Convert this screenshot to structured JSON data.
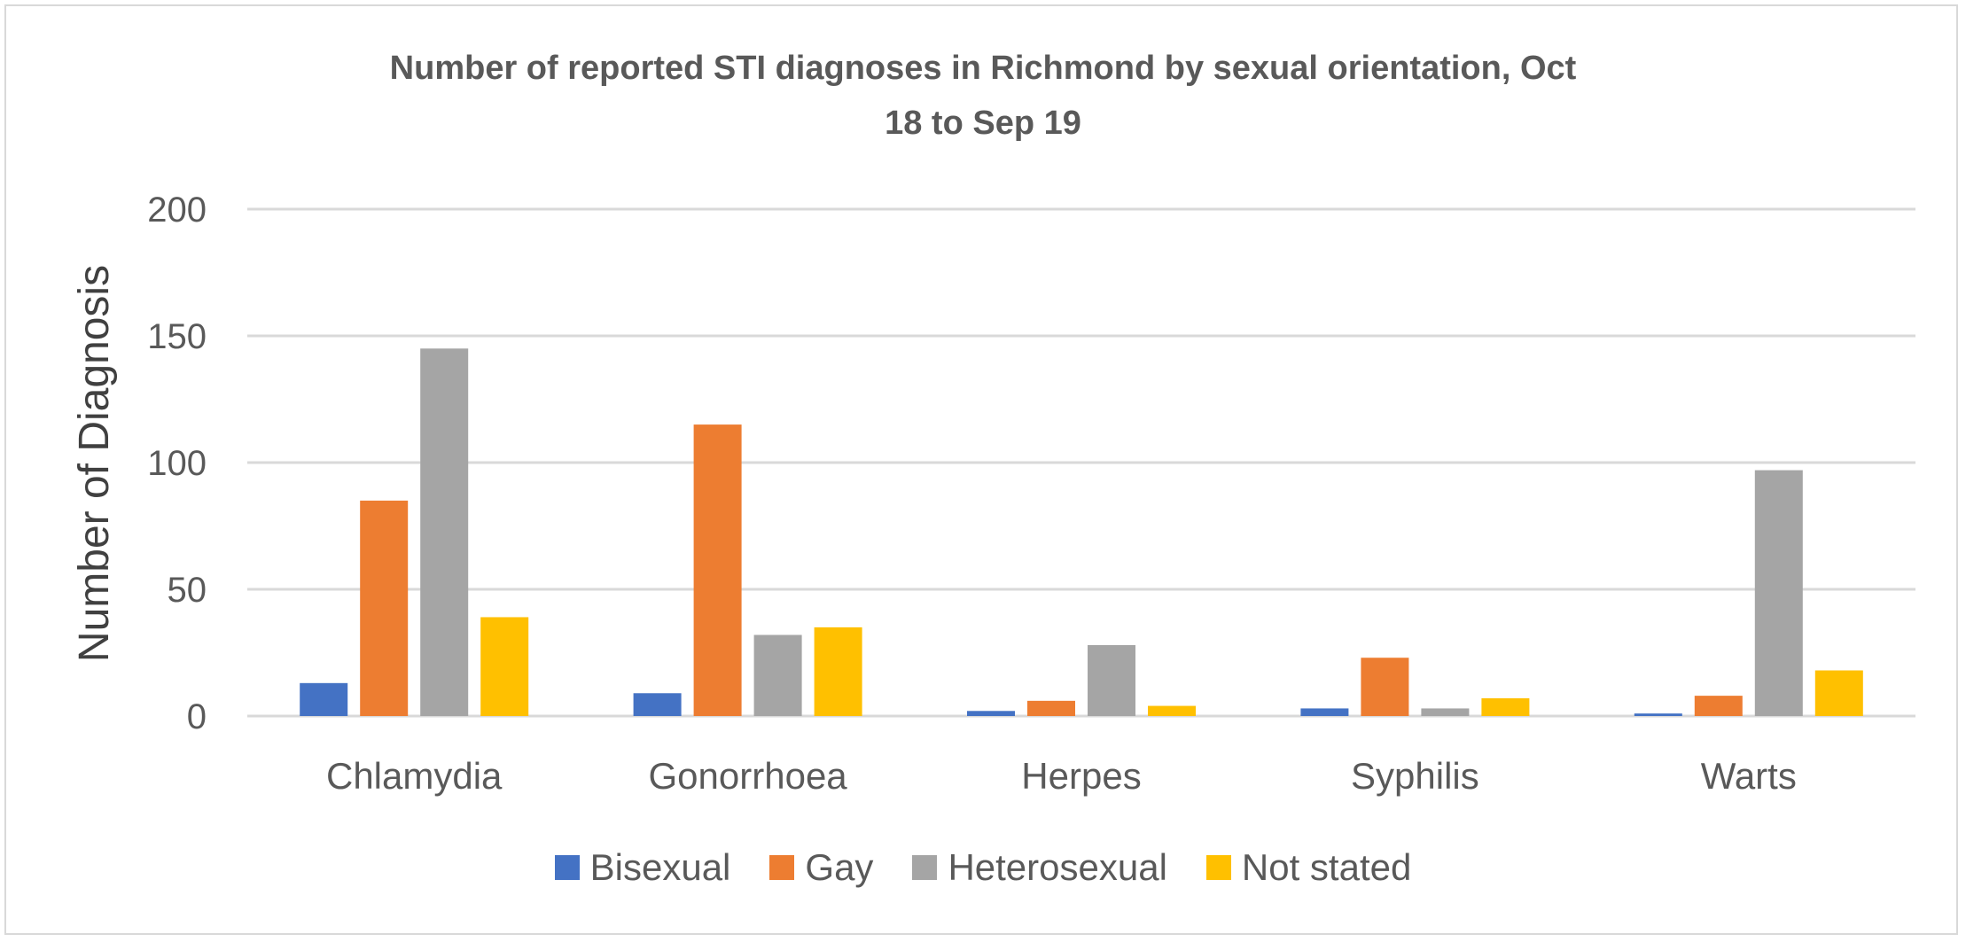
{
  "chart_data": {
    "type": "bar",
    "title": "Number of reported STI diagnoses in Richmond by sexual orientation, Oct 18 to Sep 19",
    "title_lines": [
      "Number of reported STI diagnoses in Richmond by sexual orientation, Oct",
      "18 to Sep 19"
    ],
    "xlabel": "",
    "ylabel": "Number of Diagnosis",
    "ylim": [
      0,
      200
    ],
    "yticks": [
      "0",
      "50",
      "100",
      "150",
      "200"
    ],
    "grid": true,
    "legend_position": "bottom",
    "categories": [
      "Chlamydia",
      "Gonorrhoea",
      "Herpes",
      "Syphilis",
      "Warts"
    ],
    "series": [
      {
        "name": "Bisexual",
        "color": "#4472c4",
        "values": [
          13,
          9,
          2,
          3,
          1
        ]
      },
      {
        "name": "Gay",
        "color": "#ed7d31",
        "values": [
          85,
          115,
          6,
          23,
          8
        ]
      },
      {
        "name": "Heterosexual",
        "color": "#a5a5a5",
        "values": [
          145,
          32,
          28,
          3,
          97
        ]
      },
      {
        "name": "Not stated",
        "color": "#ffc000",
        "values": [
          39,
          35,
          4,
          7,
          18
        ]
      }
    ]
  }
}
